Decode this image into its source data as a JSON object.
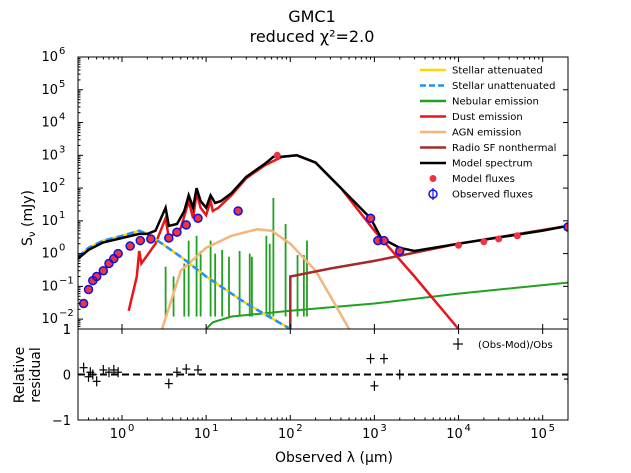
{
  "chart_data": {
    "type": "line",
    "title": "GMC1",
    "subtitle": "reduced χ²=2.0",
    "xlabel": "Observed λ (μm)",
    "ylabel": "S_ν (mJy)",
    "ylabel_text": "S",
    "ylabel_sub": "ν",
    "ylabel_unit": " (mJy)",
    "residual_ylabel_line1": "Relative",
    "residual_ylabel_line2": "residual",
    "x_scale": "log",
    "xlim": [
      0.3,
      200000
    ],
    "ylim": [
      0.005,
      1000000
    ],
    "y_scale": "log",
    "residual_ylim": [
      -1,
      1
    ],
    "x_ticks": [
      {
        "value": 1,
        "label": "10",
        "exp": "0"
      },
      {
        "value": 10,
        "label": "10",
        "exp": "1"
      },
      {
        "value": 100,
        "label": "10",
        "exp": "2"
      },
      {
        "value": 1000,
        "label": "10",
        "exp": "3"
      },
      {
        "value": 10000,
        "label": "10",
        "exp": "4"
      },
      {
        "value": 100000,
        "label": "10",
        "exp": "5"
      }
    ],
    "y_ticks": [
      {
        "value": 0.01,
        "label": "10",
        "exp": "−2"
      },
      {
        "value": 0.1,
        "label": "10",
        "exp": "−1"
      },
      {
        "value": 1,
        "label": "10",
        "exp": "0"
      },
      {
        "value": 10,
        "label": "10",
        "exp": "1"
      },
      {
        "value": 100,
        "label": "10",
        "exp": "2"
      },
      {
        "value": 1000,
        "label": "10",
        "exp": "3"
      },
      {
        "value": 10000,
        "label": "10",
        "exp": "4"
      },
      {
        "value": 100000,
        "label": "10",
        "exp": "5"
      },
      {
        "value": 1000000,
        "label": "10",
        "exp": "6"
      }
    ],
    "y_bottom_label": "1",
    "residual_ticks": [
      {
        "value": 1,
        "label": "1"
      },
      {
        "value": 0,
        "label": "0"
      },
      {
        "value": -1,
        "label": "−1"
      }
    ],
    "legend_position": "top-right",
    "legend": [
      {
        "name": "Stellar attenuated",
        "color": "#ffd700",
        "style": "solid"
      },
      {
        "name": "Stellar unattenuated",
        "color": "#1e90ff",
        "style": "dashed"
      },
      {
        "name": "Nebular emission",
        "color": "#22a022",
        "style": "solid"
      },
      {
        "name": "Dust emission",
        "color": "#e8151c",
        "style": "solid"
      },
      {
        "name": "AGN emission",
        "color": "#f4b57a",
        "style": "solid"
      },
      {
        "name": "Radio SF nonthermal",
        "color": "#a52a2a",
        "style": "solid"
      },
      {
        "name": "Model spectrum",
        "color": "#000000",
        "style": "solid"
      },
      {
        "name": "Model fluxes",
        "color": "#ee3344",
        "style": "marker-dot"
      },
      {
        "name": "Observed fluxes",
        "color": "#1010dd",
        "style": "marker-circle-errorbar"
      }
    ],
    "residual_legend": "(Obs-Mod)/Obs",
    "series": {
      "stellar_unattenuated": [
        [
          0.3,
          0.8
        ],
        [
          0.4,
          1.5
        ],
        [
          0.6,
          2.5
        ],
        [
          1,
          3.5
        ],
        [
          1.6,
          5
        ],
        [
          2,
          4
        ],
        [
          3,
          2
        ],
        [
          5,
          0.8
        ],
        [
          10,
          0.2
        ],
        [
          30,
          0.03
        ],
        [
          100,
          0.004
        ]
      ],
      "stellar_attenuated": [
        [
          0.3,
          0.8
        ],
        [
          0.4,
          1.5
        ],
        [
          0.6,
          2.5
        ],
        [
          1,
          3.5
        ],
        [
          1.6,
          5
        ],
        [
          2,
          4
        ],
        [
          3,
          2
        ],
        [
          5,
          0.8
        ],
        [
          10,
          0.2
        ],
        [
          30,
          0.03
        ],
        [
          100,
          0.004
        ]
      ],
      "nebular_continuum": [
        [
          10,
          0.005
        ],
        [
          12,
          0.008
        ],
        [
          20,
          0.012
        ],
        [
          100,
          0.018
        ],
        [
          1000,
          0.03
        ],
        [
          10000,
          0.06
        ],
        [
          200000,
          0.13
        ]
      ],
      "nebular_lines": [
        [
          3.3,
          0.4
        ],
        [
          4.1,
          0.2
        ],
        [
          5.5,
          0.5
        ],
        [
          6.2,
          2.5
        ],
        [
          7.7,
          3.5
        ],
        [
          8.6,
          1.2
        ],
        [
          11.3,
          2.5
        ],
        [
          12.8,
          1
        ],
        [
          15.5,
          1.3
        ],
        [
          18.7,
          0.8
        ],
        [
          25,
          1.2
        ],
        [
          33,
          1
        ],
        [
          35,
          0.8
        ],
        [
          52,
          3.5
        ],
        [
          57,
          2
        ],
        [
          63,
          50
        ],
        [
          88,
          8
        ],
        [
          122,
          0.9
        ],
        [
          145,
          0.9
        ],
        [
          158,
          2.5
        ]
      ],
      "dust_emission": [
        [
          1.2,
          0.018
        ],
        [
          1.5,
          0.2
        ],
        [
          1.6,
          1.2
        ],
        [
          1.7,
          0.5
        ],
        [
          2.5,
          2
        ],
        [
          3.3,
          12
        ],
        [
          3.6,
          3
        ],
        [
          5,
          6
        ],
        [
          6.2,
          40
        ],
        [
          7,
          12
        ],
        [
          7.7,
          70
        ],
        [
          8.6,
          25
        ],
        [
          10,
          15
        ],
        [
          11.3,
          40
        ],
        [
          12,
          20
        ],
        [
          14,
          25
        ],
        [
          20,
          60
        ],
        [
          30,
          200
        ],
        [
          50,
          500
        ],
        [
          80,
          900
        ],
        [
          120,
          1000
        ],
        [
          200,
          600
        ],
        [
          400,
          100
        ],
        [
          1000,
          5
        ],
        [
          3000,
          0.2
        ],
        [
          10000,
          0.005
        ]
      ],
      "agn_emission": [
        [
          3,
          0.005
        ],
        [
          5,
          0.3
        ],
        [
          10,
          1.5
        ],
        [
          20,
          3.5
        ],
        [
          40,
          5.5
        ],
        [
          60,
          5
        ],
        [
          100,
          2
        ],
        [
          200,
          0.3
        ],
        [
          300,
          0.05
        ],
        [
          500,
          0.004
        ]
      ],
      "radio_nonthermal": [
        [
          100,
          0.004
        ],
        [
          100,
          0.2
        ],
        [
          300,
          0.35
        ],
        [
          1000,
          0.6
        ],
        [
          10000,
          2
        ],
        [
          200000,
          7
        ]
      ],
      "model_spectrum": [
        [
          0.3,
          0.7
        ],
        [
          0.4,
          1.3
        ],
        [
          0.6,
          2.2
        ],
        [
          1,
          3
        ],
        [
          1.6,
          4
        ],
        [
          2,
          4
        ],
        [
          2.5,
          5
        ],
        [
          3.3,
          25
        ],
        [
          3.6,
          7
        ],
        [
          4.5,
          8
        ],
        [
          5.5,
          20
        ],
        [
          6.2,
          60
        ],
        [
          7,
          25
        ],
        [
          7.7,
          100
        ],
        [
          8.6,
          40
        ],
        [
          10,
          25
        ],
        [
          11.3,
          60
        ],
        [
          12.8,
          35
        ],
        [
          15,
          40
        ],
        [
          20,
          70
        ],
        [
          30,
          220
        ],
        [
          50,
          550
        ],
        [
          63,
          900
        ],
        [
          80,
          900
        ],
        [
          120,
          1000
        ],
        [
          200,
          600
        ],
        [
          400,
          100
        ],
        [
          900,
          12
        ],
        [
          1200,
          3
        ],
        [
          2000,
          1.5
        ],
        [
          3000,
          1.2
        ],
        [
          10000,
          2
        ],
        [
          100000,
          5
        ],
        [
          200000,
          7
        ]
      ],
      "model_fluxes": [
        [
          0.35,
          0.03
        ],
        [
          0.4,
          0.08
        ],
        [
          0.45,
          0.15
        ],
        [
          0.5,
          0.2
        ],
        [
          0.6,
          0.3
        ],
        [
          0.7,
          0.5
        ],
        [
          0.8,
          0.7
        ],
        [
          0.9,
          1
        ],
        [
          1.25,
          1.7
        ],
        [
          1.65,
          2.5
        ],
        [
          2.2,
          2.8
        ],
        [
          3.6,
          3
        ],
        [
          4.5,
          4.5
        ],
        [
          5.8,
          7.5
        ],
        [
          8,
          12
        ],
        [
          24,
          20
        ],
        [
          70,
          1000
        ],
        [
          900,
          12
        ],
        [
          1100,
          2.5
        ],
        [
          1300,
          2.5
        ],
        [
          2000,
          1.2
        ],
        [
          10000,
          1.8
        ],
        [
          20000,
          2.3
        ],
        [
          30000,
          2.8
        ],
        [
          50000,
          3.5
        ],
        [
          200000,
          6.5
        ]
      ],
      "observed_fluxes": [
        [
          0.35,
          0.03
        ],
        [
          0.4,
          0.08
        ],
        [
          0.45,
          0.15
        ],
        [
          0.5,
          0.2
        ],
        [
          0.6,
          0.3
        ],
        [
          0.7,
          0.5
        ],
        [
          0.8,
          0.7
        ],
        [
          0.9,
          1
        ],
        [
          1.25,
          1.7
        ],
        [
          1.65,
          2.5
        ],
        [
          2.2,
          2.8
        ],
        [
          3.6,
          3
        ],
        [
          4.5,
          4.5
        ],
        [
          5.8,
          7.5
        ],
        [
          8,
          12
        ],
        [
          24,
          20
        ],
        [
          900,
          12
        ],
        [
          1100,
          2.5
        ],
        [
          1300,
          2.5
        ],
        [
          2000,
          1.2
        ],
        [
          200000,
          6.5
        ]
      ],
      "residuals": [
        [
          0.35,
          0.15
        ],
        [
          0.4,
          -0.05
        ],
        [
          0.42,
          0.05
        ],
        [
          0.45,
          0.0
        ],
        [
          0.5,
          -0.15
        ],
        [
          0.6,
          0.1
        ],
        [
          0.7,
          0.05
        ],
        [
          0.8,
          0.1
        ],
        [
          0.9,
          0.05
        ],
        [
          3.6,
          -0.2
        ],
        [
          4.5,
          0.05
        ],
        [
          5.8,
          0.12
        ],
        [
          8,
          0.1
        ],
        [
          900,
          0.35
        ],
        [
          1000,
          -0.25
        ],
        [
          1300,
          0.35
        ],
        [
          2000,
          0.0
        ],
        [
          200000,
          -0.1
        ]
      ]
    }
  }
}
